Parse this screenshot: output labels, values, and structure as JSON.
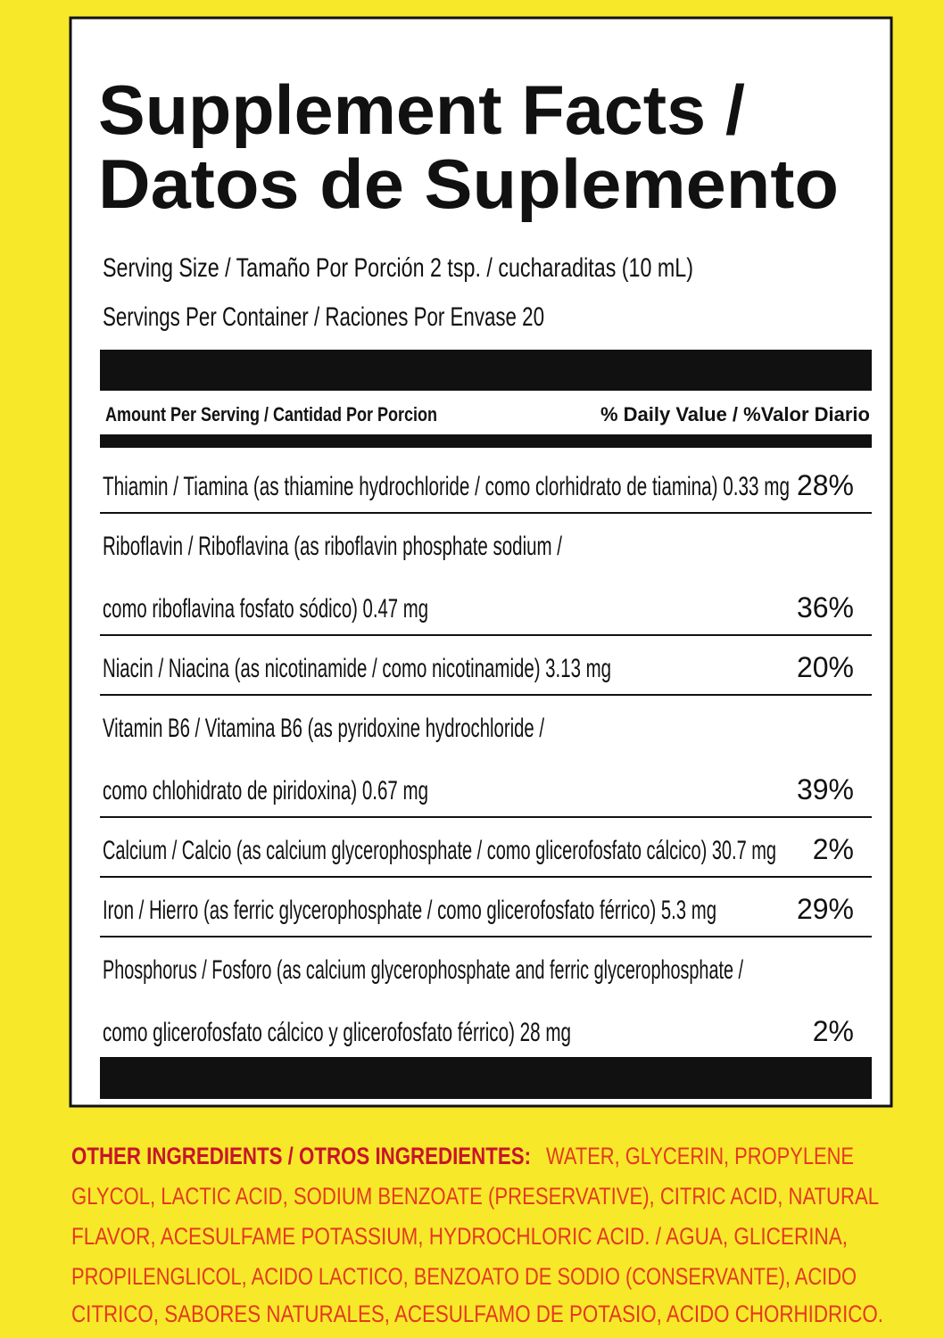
{
  "title": [
    "Supplement Facts /",
    "Datos de Suplemento"
  ],
  "serving_size": "Serving Size / Tamaño Por Porción 2 tsp. / cucharaditas (10 mL)",
  "servings_per_container": "Servings Per Container / Raciones Por Envase 20",
  "header": {
    "amount": "Amount Per Serving / Cantidad Por Porcion",
    "daily_value": "% Daily Value / %Valor Diario"
  },
  "rows": [
    {
      "lines": [
        "Thiamin / Tiamina (as thiamine hydrochloride / como clorhidrato de tiamina) 0.33 mg"
      ],
      "dv": "28%"
    },
    {
      "lines": [
        "Riboflavin / Riboflavina (as riboflavin phosphate sodium /",
        "como riboflavina fosfato sódico) 0.47 mg"
      ],
      "dv": "36%"
    },
    {
      "lines": [
        "Niacin / Niacina (as nicotinamide / como nicotinamide) 3.13 mg"
      ],
      "dv": "20%"
    },
    {
      "lines": [
        "Vitamin B6 / Vitamina B6 (as pyridoxine hydrochloride /",
        "como chlohidrato de piridoxina) 0.67 mg"
      ],
      "dv": "39%"
    },
    {
      "lines": [
        "Calcium / Calcio (as calcium glycerophosphate / como glicerofosfato cálcico) 30.7 mg"
      ],
      "dv": "2%"
    },
    {
      "lines": [
        "Iron / Hierro (as ferric glycerophosphate / como glicerofosfato férrico) 5.3 mg"
      ],
      "dv": "29%"
    },
    {
      "lines": [
        "Phosphorus / Fosforo (as calcium glycerophosphate and ferric glycerophosphate /",
        "como  glicerofosfato cálcico y  glicerofosfato férrico) 28 mg"
      ],
      "dv": "2%"
    }
  ],
  "other_ingredients": {
    "label": "OTHER INGREDIENTS / OTROS INGREDIENTES:",
    "lines": [
      "WATER, GLYCERIN, PROPYLENE",
      "GLYCOL, LACTIC ACID, SODIUM BENZOATE (PRESERVATIVE), CITRIC ACID, NATURAL",
      "FLAVOR, ACESULFAME POTASSIUM, HYDROCHLORIC ACID. / AGUA, GLICERINA,",
      "PROPILENGLICOL, ACIDO LACTICO, BENZOATO DE SODIO (CONSERVANTE), ACIDO",
      "CITRICO, SABORES NATURALES, ACESULFAMO DE POTASIO, ACIDO CHORHIDRICO."
    ]
  }
}
